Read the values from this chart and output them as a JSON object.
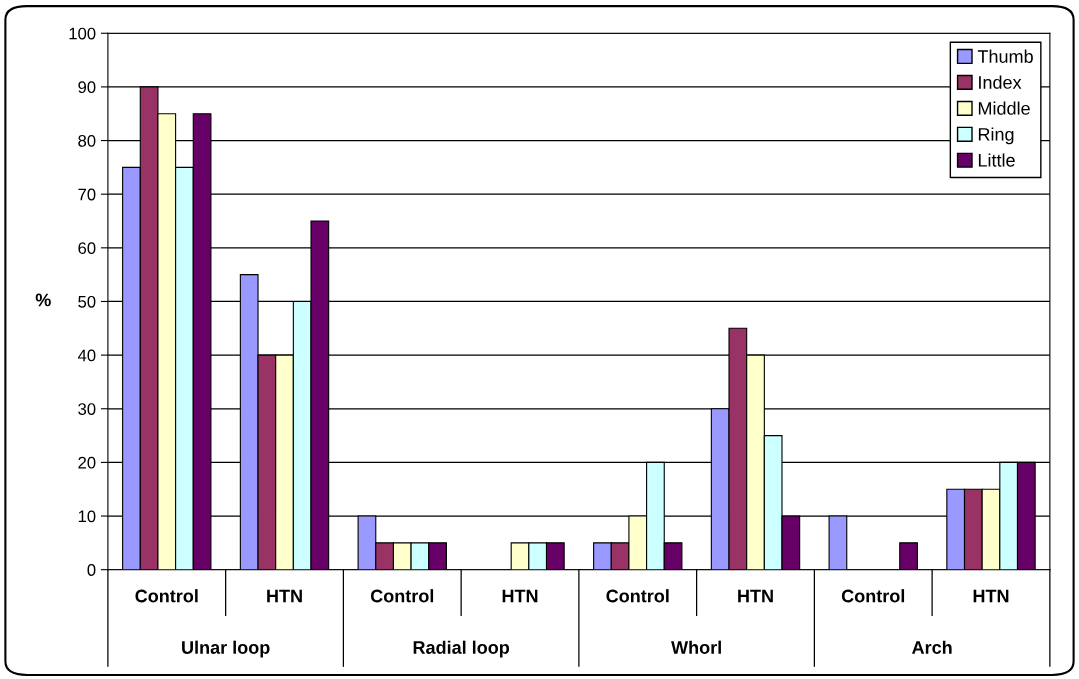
{
  "chart_data": {
    "type": "bar",
    "ylabel": "%",
    "categories": [
      "Control",
      "HTN",
      "Control",
      "HTN",
      "Control",
      "HTN",
      "Control",
      "HTN"
    ],
    "annotations": [
      "Ulnar loop",
      "Radial loop",
      "Whorl",
      "Arch"
    ],
    "series": [
      {
        "name": "Thumb",
        "color": "#9999ff",
        "values": [
          75,
          55,
          10,
          0,
          5,
          30,
          10,
          15
        ]
      },
      {
        "name": "Index",
        "color": "#993366",
        "values": [
          90,
          40,
          5,
          0,
          5,
          45,
          0,
          15
        ]
      },
      {
        "name": "Middle",
        "color": "#ffffcc",
        "values": [
          85,
          40,
          5,
          5,
          10,
          40,
          0,
          15
        ]
      },
      {
        "name": "Ring",
        "color": "#ccffff",
        "values": [
          75,
          50,
          5,
          5,
          20,
          25,
          0,
          20
        ]
      },
      {
        "name": "Little",
        "color": "#660066",
        "values": [
          85,
          65,
          5,
          5,
          5,
          10,
          5,
          20
        ]
      }
    ],
    "ylim": [
      0,
      100
    ],
    "yticks": [
      0,
      10,
      20,
      30,
      40,
      50,
      60,
      70,
      80,
      90,
      100
    ],
    "grid": "y",
    "legend": "top right"
  }
}
